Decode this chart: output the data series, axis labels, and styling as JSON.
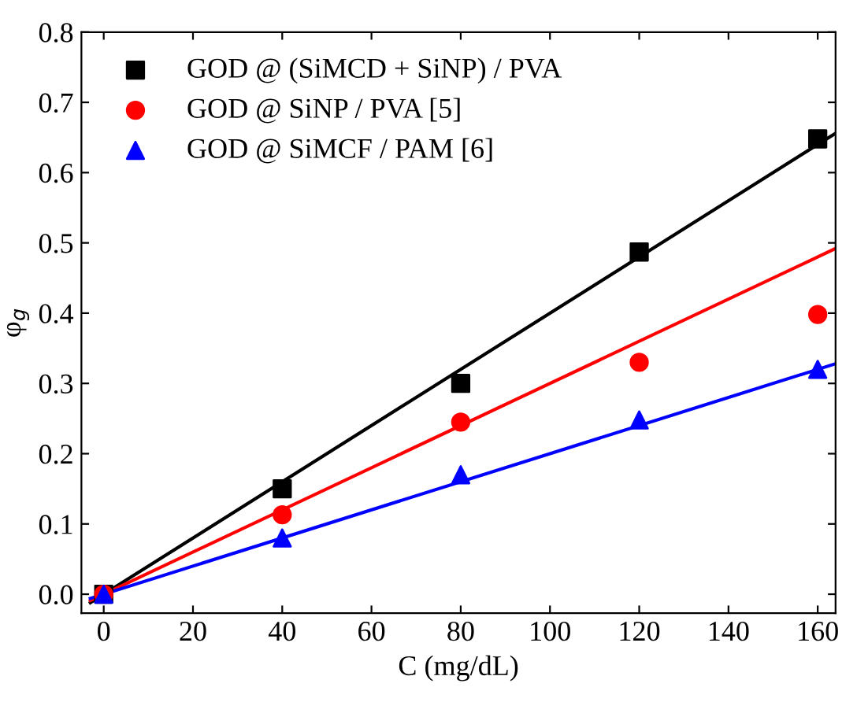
{
  "chart_data": {
    "type": "scatter",
    "xlabel": "C (mg/dL)",
    "ylabel": "φ$_{g}$",
    "xlim": [
      -5,
      164
    ],
    "ylim": [
      -0.027,
      0.8
    ],
    "xticks": [
      0,
      20,
      40,
      60,
      80,
      100,
      120,
      140,
      160
    ],
    "yticks": [
      {
        "value": 0,
        "label": "0.0"
      },
      0.1,
      0.2,
      0.3,
      0.4,
      0.5,
      0.6,
      0.7,
      0.8
    ],
    "grid": false,
    "legend": "top left",
    "series": [
      {
        "name": "GOD @ (SiMCD + SiNP) / PVA",
        "color": "#000000",
        "marker": "square",
        "x": [
          0,
          40,
          80,
          120,
          160
        ],
        "values": [
          0,
          0.15,
          0.3,
          0.487,
          0.648
        ]
      },
      {
        "name": "GOD @ SiNP / PVA [5]",
        "color": "#ff0000",
        "marker": "circle",
        "x": [
          0,
          40,
          80,
          120,
          160
        ],
        "values": [
          0,
          0.113,
          0.245,
          0.33,
          0.398
        ]
      },
      {
        "name": "GOD @ SiMCF / PAM [6]",
        "color": "#0000ff",
        "marker": "triangle",
        "x": [
          0,
          40,
          80,
          120,
          160
        ],
        "values": [
          0,
          0.08,
          0.17,
          0.248,
          0.32
        ]
      },
      {
        "type": "line",
        "color": "#000000",
        "marker": "none",
        "x": [
          -3,
          164
        ],
        "values": [
          -0.012,
          0.656
        ]
      },
      {
        "type": "line",
        "color": "#ff0000",
        "marker": "none",
        "x": [
          -3,
          164
        ],
        "values": [
          -0.009,
          0.492
        ]
      },
      {
        "type": "line",
        "color": "#0000ff",
        "marker": "none",
        "x": [
          -3,
          164
        ],
        "values": [
          -0.006,
          0.328
        ]
      }
    ]
  }
}
